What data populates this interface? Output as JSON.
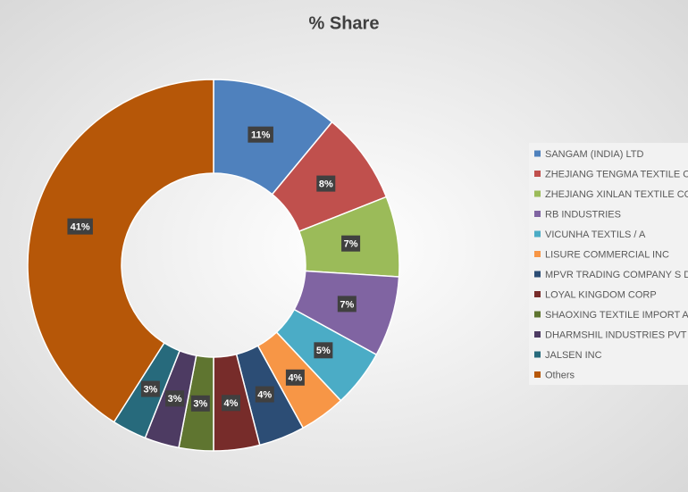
{
  "chart_data": {
    "type": "donut",
    "title": "% Share",
    "categories": [
      "SANGAM (INDIA) LTD",
      "ZHEJIANG TENGMA TEXTILE CO LT",
      "ZHEJIANG XINLAN TEXTILE CO LT",
      "RB INDUSTRIES",
      "VICUNHA TEXTILS / A",
      "LISURE COMMERCIAL INC",
      "MPVR TRADING COMPANY S DE R",
      "LOYAL KINGDOM CORP",
      "SHAOXING TEXTILE IMPORT AND",
      "DHARMSHIL INDUSTRIES PVT LTD",
      "JALSEN INC",
      "Others"
    ],
    "values": [
      11,
      8,
      7,
      7,
      5,
      4,
      4,
      4,
      3,
      3,
      3,
      41
    ],
    "value_labels": [
      "11%",
      "8%",
      "7%",
      "7%",
      "5%",
      "4%",
      "4%",
      "4%",
      "3%",
      "3%",
      "3%",
      "41%"
    ],
    "colors": [
      "#4f81bd",
      "#c0504d",
      "#9bbb59",
      "#8064a2",
      "#4bacc6",
      "#f79646",
      "#2c4d75",
      "#772c2a",
      "#5f7530",
      "#4d3b62",
      "#276a7c",
      "#b65708"
    ],
    "legend": "right"
  }
}
